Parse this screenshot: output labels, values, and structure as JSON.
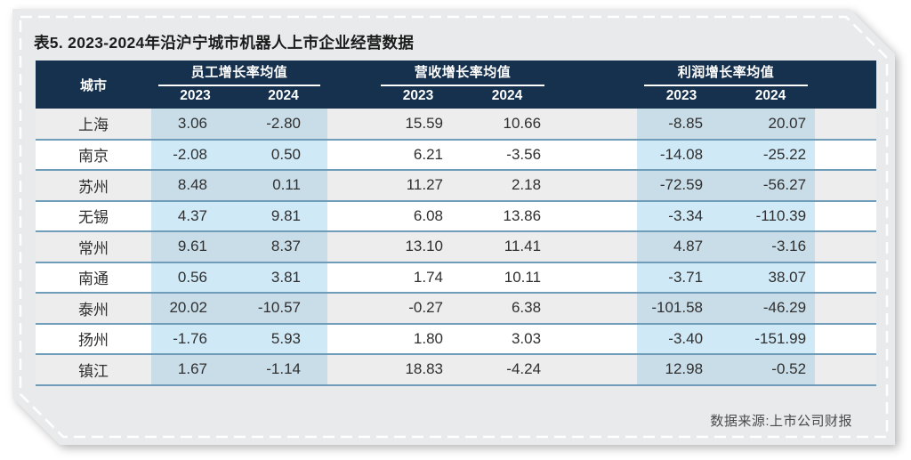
{
  "title": "表5. 2023-2024年沿沪宁城市机器人上市企业经营数据",
  "table": {
    "city_header": "城市",
    "groups": [
      {
        "label": "员工增长率均值",
        "years": [
          "2023",
          "2024"
        ]
      },
      {
        "label": "营收增长率均值",
        "years": [
          "2023",
          "2024"
        ]
      },
      {
        "label": "利润增长率均值",
        "years": [
          "2023",
          "2024"
        ]
      }
    ],
    "rows": [
      {
        "city": "上海",
        "emp": [
          "3.06",
          "-2.80"
        ],
        "rev": [
          "15.59",
          "10.66"
        ],
        "profit": [
          "-8.85",
          "20.07"
        ]
      },
      {
        "city": "南京",
        "emp": [
          "-2.08",
          "0.50"
        ],
        "rev": [
          "6.21",
          "-3.56"
        ],
        "profit": [
          "-14.08",
          "-25.22"
        ]
      },
      {
        "city": "苏州",
        "emp": [
          "8.48",
          "0.11"
        ],
        "rev": [
          "11.27",
          "2.18"
        ],
        "profit": [
          "-72.59",
          "-56.27"
        ]
      },
      {
        "city": "无锡",
        "emp": [
          "4.37",
          "9.81"
        ],
        "rev": [
          "6.08",
          "13.86"
        ],
        "profit": [
          "-3.34",
          "-110.39"
        ]
      },
      {
        "city": "常州",
        "emp": [
          "9.61",
          "8.37"
        ],
        "rev": [
          "13.10",
          "11.41"
        ],
        "profit": [
          "4.87",
          "-3.16"
        ]
      },
      {
        "city": "南通",
        "emp": [
          "0.56",
          "3.81"
        ],
        "rev": [
          "1.74",
          "10.11"
        ],
        "profit": [
          "-3.71",
          "38.07"
        ]
      },
      {
        "city": "泰州",
        "emp": [
          "20.02",
          "-10.57"
        ],
        "rev": [
          "-0.27",
          "6.38"
        ],
        "profit": [
          "-101.58",
          "-46.29"
        ]
      },
      {
        "city": "扬州",
        "emp": [
          "-1.76",
          "5.93"
        ],
        "rev": [
          "1.80",
          "3.03"
        ],
        "profit": [
          "-3.40",
          "-151.99"
        ]
      },
      {
        "city": "镇江",
        "emp": [
          "1.67",
          "-1.14"
        ],
        "rev": [
          "18.83",
          "-4.24"
        ],
        "profit": [
          "12.98",
          "-0.52"
        ]
      }
    ]
  },
  "footer": {
    "source": "数据来源:上市公司财报"
  },
  "colors": {
    "header_navy": "#16314e",
    "card_gray": "#e9eaeb",
    "row_gray": "#ededee",
    "highlight_blue_on_white": "#d0e9f7",
    "highlight_blue_on_gray": "#c9dde9",
    "row_separator": "#6f9cb8",
    "dashed_border": "#ffffff"
  },
  "chart_data": {
    "type": "table",
    "title": "表5. 2023-2024年沿沪宁城市机器人上市企业经营数据",
    "categories": [
      "上海",
      "南京",
      "苏州",
      "无锡",
      "常州",
      "南通",
      "泰州",
      "扬州",
      "镇江"
    ],
    "column_groups": [
      "员工增长率均值",
      "营收增长率均值",
      "利润增长率均值"
    ],
    "years": [
      "2023",
      "2024"
    ],
    "series": [
      {
        "name": "员工增长率均值 2023",
        "values": [
          3.06,
          -2.08,
          8.48,
          4.37,
          9.61,
          0.56,
          20.02,
          -1.76,
          1.67
        ]
      },
      {
        "name": "员工增长率均值 2024",
        "values": [
          -2.8,
          0.5,
          0.11,
          9.81,
          8.37,
          3.81,
          -10.57,
          5.93,
          -1.14
        ]
      },
      {
        "name": "营收增长率均值 2023",
        "values": [
          15.59,
          6.21,
          11.27,
          6.08,
          13.1,
          1.74,
          -0.27,
          1.8,
          18.83
        ]
      },
      {
        "name": "营收增长率均值 2024",
        "values": [
          10.66,
          -3.56,
          2.18,
          13.86,
          11.41,
          10.11,
          6.38,
          3.03,
          -4.24
        ]
      },
      {
        "name": "利润增长率均值 2023",
        "values": [
          -8.85,
          -14.08,
          -72.59,
          -3.34,
          4.87,
          -3.71,
          -101.58,
          -3.4,
          12.98
        ]
      },
      {
        "name": "利润增长率均值 2024",
        "values": [
          20.07,
          -25.22,
          -56.27,
          -110.39,
          -3.16,
          38.07,
          -46.29,
          -151.99,
          -0.52
        ]
      }
    ],
    "source": "数据来源:上市公司财报"
  }
}
